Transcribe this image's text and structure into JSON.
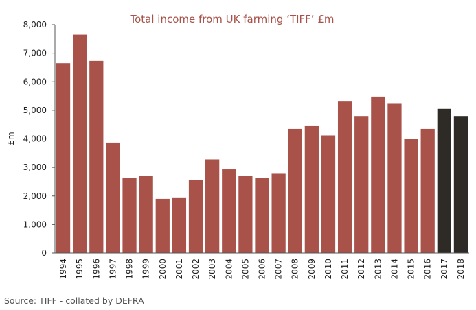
{
  "chart_data": {
    "type": "bar",
    "title": "Total income from UK farming ‘TIFF’ £m",
    "ylabel": "£m",
    "xlabel": "",
    "ylim": [
      0,
      8000
    ],
    "yticks": [
      "0",
      "1,000",
      "2,000",
      "3,000",
      "4,000",
      "5,000",
      "6,000",
      "7,000",
      "8,000"
    ],
    "categories": [
      "1994",
      "1995",
      "1996",
      "1997",
      "1998",
      "1999",
      "2000",
      "2001",
      "2002",
      "2003",
      "2004",
      "2005",
      "2006",
      "2007",
      "2008",
      "2009",
      "2010",
      "2011",
      "2012",
      "2013",
      "2014",
      "2015",
      "2016",
      "2017",
      "2018"
    ],
    "values": [
      6650,
      7650,
      6730,
      3870,
      2630,
      2700,
      1900,
      1950,
      2560,
      3280,
      2930,
      2700,
      2630,
      2800,
      4350,
      4470,
      4120,
      5330,
      4800,
      5480,
      5250,
      4000,
      4350,
      5050,
      4800
    ],
    "bar_colors": [
      "#a9524a",
      "#a9524a",
      "#a9524a",
      "#a9524a",
      "#a9524a",
      "#a9524a",
      "#a9524a",
      "#a9524a",
      "#a9524a",
      "#a9524a",
      "#a9524a",
      "#a9524a",
      "#a9524a",
      "#a9524a",
      "#a9524a",
      "#a9524a",
      "#a9524a",
      "#a9524a",
      "#a9524a",
      "#a9524a",
      "#a9524a",
      "#a9524a",
      "#a9524a",
      "#2e2a26",
      "#2e2a26"
    ],
    "title_color": "#a9524a",
    "grid": false,
    "legend": "none"
  },
  "source_text": "Source: TIFF - collated by DEFRA"
}
